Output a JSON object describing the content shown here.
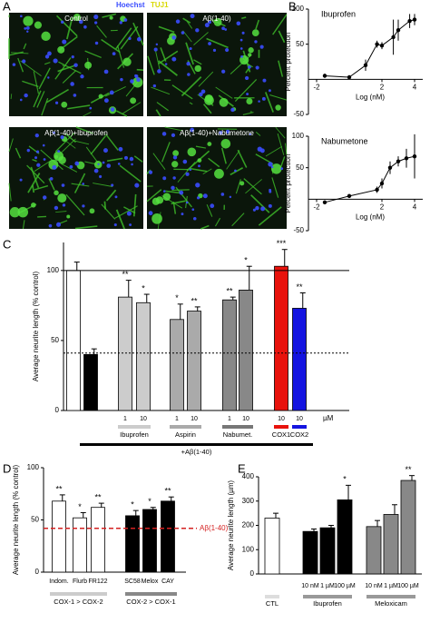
{
  "panel_a": {
    "label": "A",
    "legend": [
      {
        "text": "Hoechst",
        "color": "#3a4dff"
      },
      {
        "text": "TUJ1",
        "color": "#d8d800"
      }
    ],
    "images": [
      "Control",
      "Aβ(1-40)",
      "Aβ(1-40)+Ibuprofen",
      "Aβ(1-40)+Nabumetone"
    ]
  },
  "chart_data": [
    {
      "type": "line",
      "panel": "B",
      "title": "Ibuprofen",
      "y_label": "Percent protection",
      "x_label": "Log (nM)",
      "x": [
        -1.5,
        0,
        1,
        1.7,
        2,
        2.7,
        3,
        3.7,
        4
      ],
      "values": [
        5,
        3,
        20,
        50,
        48,
        60,
        70,
        83,
        85
      ],
      "errors": [
        3,
        3,
        8,
        5,
        5,
        25,
        15,
        10,
        8
      ],
      "color": "#000000",
      "xlim": [
        -2.5,
        4.5
      ],
      "xticks": [
        -2,
        2,
        4
      ],
      "ylim": [
        -50,
        100
      ],
      "yticks": [
        -50,
        50,
        100
      ]
    },
    {
      "type": "line",
      "title": "Nabumetone",
      "y_label": "Percent protection",
      "x_label": "Log (nM)",
      "x": [
        -1.5,
        0,
        1.7,
        2,
        2.5,
        3,
        3.5,
        4
      ],
      "values": [
        -5,
        5,
        15,
        25,
        50,
        60,
        65,
        68
      ],
      "errors": [
        3,
        3,
        5,
        8,
        10,
        8,
        15,
        35
      ],
      "color": "#000000",
      "xlim": [
        -2.5,
        4.5
      ],
      "xticks": [
        -2,
        2,
        4
      ],
      "ylim": [
        -50,
        100
      ],
      "yticks": [
        -50,
        50,
        100
      ]
    },
    {
      "type": "bar",
      "panel": "C",
      "y_label": "Average neurite length (% control)",
      "categories": [
        null,
        null,
        "1",
        "10",
        "1",
        "10",
        "1",
        "10",
        "10",
        "10"
      ],
      "values": [
        100,
        40,
        81,
        77,
        65,
        71,
        79,
        86,
        103,
        73
      ],
      "errors": [
        6,
        4,
        12,
        6,
        11,
        3,
        2,
        17,
        12,
        11
      ],
      "colors": [
        "#ffffff",
        "#000000",
        "#cccccc",
        "#cccccc",
        "#aaaaaa",
        "#aaaaaa",
        "#888888",
        "#888888",
        "#e8120c",
        "#1414e0"
      ],
      "annotations": [
        null,
        null,
        "**",
        "*",
        "*",
        "**",
        "**",
        "*",
        "***",
        "**"
      ],
      "reference_lines": [
        {
          "value": 100,
          "style": "solid",
          "color": "#000000"
        },
        {
          "value": 41,
          "style": "dotted",
          "color": "#000000"
        }
      ],
      "groups": [
        {
          "label": "Ibuprofen",
          "color": "#cccccc"
        },
        {
          "label": "Aspirin",
          "color": "#aaaaaa"
        },
        {
          "label": "Nabumet.",
          "color": "#777777"
        },
        {
          "label": "COX1",
          "color": "#e8120c"
        },
        {
          "label": "COX2",
          "color": "#1414e0"
        }
      ],
      "unit_label": "µM",
      "treatment_label": "+Aβ(1-40)",
      "ylim": [
        0,
        120
      ],
      "yticks": [
        0,
        50,
        100
      ]
    },
    {
      "type": "bar",
      "panel": "D",
      "y_label": "Average neurite length (% control)",
      "categories": [
        "Indom.",
        "Flurb",
        "FR122",
        "SC58",
        "Melox",
        "CAY"
      ],
      "values": [
        68,
        52,
        62,
        54,
        60,
        68
      ],
      "errors": [
        6,
        5,
        4,
        5,
        2,
        4
      ],
      "colors": [
        "#ffffff",
        "#ffffff",
        "#ffffff",
        "#000000",
        "#000000",
        "#000000"
      ],
      "annotations": [
        "**",
        "*",
        "**",
        "*",
        "*",
        "**"
      ],
      "reference_lines": [
        {
          "value": 42,
          "style": "dashed",
          "color": "#d42020",
          "label": "Aβ(1-40)"
        }
      ],
      "groups": [
        {
          "label": "COX-1 > COX-2",
          "color": "#cccccc"
        },
        {
          "label": "COX-2 > COX-1",
          "color": "#888888"
        }
      ],
      "ylim": [
        0,
        100
      ],
      "yticks": [
        0,
        50,
        100
      ]
    },
    {
      "type": "bar",
      "panel": "E",
      "y_label": "Average neurite length  (µm)",
      "categories": [
        null,
        "10 nM",
        "1 µM",
        "100 µM",
        "10 nM",
        "1 µM",
        "100 µM"
      ],
      "values": [
        230,
        175,
        190,
        305,
        195,
        245,
        385
      ],
      "errors": [
        20,
        10,
        10,
        60,
        25,
        40,
        20
      ],
      "colors": [
        "#ffffff",
        "#000000",
        "#000000",
        "#000000",
        "#888888",
        "#888888",
        "#888888"
      ],
      "annotations": [
        null,
        null,
        null,
        "*",
        null,
        null,
        "**"
      ],
      "groups": [
        {
          "label": "CTL",
          "color": "#dddddd"
        },
        {
          "label": "Ibuprofen",
          "color": "#999999"
        },
        {
          "label": "Meloxicam",
          "color": "#999999"
        }
      ],
      "ylim": [
        0,
        400
      ],
      "yticks": [
        0,
        100,
        200,
        300,
        400
      ]
    }
  ]
}
